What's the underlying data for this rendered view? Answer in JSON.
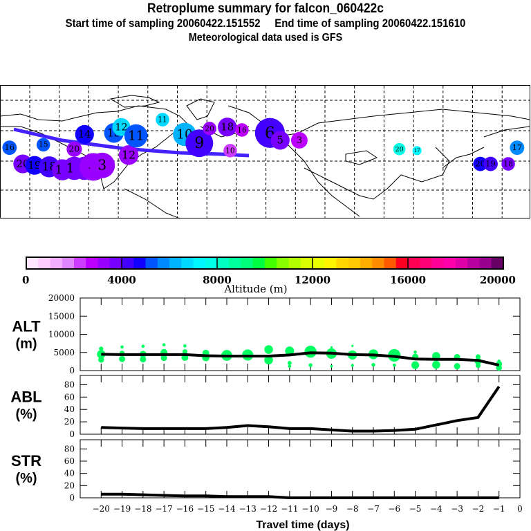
{
  "header": {
    "title": "Retroplume summary for falcon_060422c",
    "sampling": "Start time of sampling 20060422.151552     End time of sampling 20060422.151610",
    "met": "Meteorological data used is GFS"
  },
  "map": {
    "plume_points": [
      {
        "label": "20",
        "lon": -180,
        "lat": 37,
        "alt": 3800,
        "size": 3
      },
      {
        "label": "19",
        "lon": -172,
        "lat": 36,
        "alt": 4500,
        "size": 3
      },
      {
        "label": "18",
        "lon": -162,
        "lat": 35,
        "alt": 4200,
        "size": 3.5
      },
      {
        "label": "17",
        "lon": -153,
        "lat": 33,
        "alt": 3900,
        "size": 3.5
      },
      {
        "label": "16",
        "lon": -145,
        "lat": 34,
        "alt": 3800,
        "size": 4
      },
      {
        "label": "5",
        "lon": -138,
        "lat": 34,
        "alt": 3700,
        "size": 4
      },
      {
        "label": "4",
        "lon": -132,
        "lat": 35,
        "alt": 3400,
        "size": 5
      },
      {
        "label": "3",
        "lon": -126,
        "lat": 36,
        "alt": 3300,
        "size": 4.5
      },
      {
        "label": "16",
        "lon": -189,
        "lat": 48,
        "alt": 5000,
        "size": 2
      },
      {
        "label": "15",
        "lon": -166,
        "lat": 50,
        "alt": 5200,
        "size": 1.8
      },
      {
        "label": "20",
        "lon": -145,
        "lat": 47,
        "alt": 3000,
        "size": 2.2
      },
      {
        "label": "14",
        "lon": -138,
        "lat": 57,
        "alt": 4700,
        "size": 3
      },
      {
        "label": "13",
        "lon": -118,
        "lat": 58,
        "alt": 5200,
        "size": 3.2
      },
      {
        "label": "12",
        "lon": -113,
        "lat": 62,
        "alt": 6500,
        "size": 2.8
      },
      {
        "label": "12",
        "lon": -108,
        "lat": 43,
        "alt": 3000,
        "size": 3.2
      },
      {
        "label": "11",
        "lon": -103,
        "lat": 56,
        "alt": 5000,
        "size": 4
      },
      {
        "label": "11",
        "lon": -85,
        "lat": 67,
        "alt": 6500,
        "size": 1.8
      },
      {
        "label": "10",
        "lon": -70,
        "lat": 57,
        "alt": 6000,
        "size": 4
      },
      {
        "label": "9",
        "lon": -60,
        "lat": 51,
        "alt": 4400,
        "size": 5
      },
      {
        "label": "20",
        "lon": -53,
        "lat": 61,
        "alt": 3200,
        "size": 1.8
      },
      {
        "label": "18",
        "lon": -41,
        "lat": 62,
        "alt": 3600,
        "size": 3
      },
      {
        "label": "16",
        "lon": -31,
        "lat": 60,
        "alt": 2800,
        "size": 1.8
      },
      {
        "label": "6",
        "lon": -12,
        "lat": 58,
        "alt": 4000,
        "size": 5.5
      },
      {
        "label": "5",
        "lon": -5,
        "lat": 53,
        "alt": 3500,
        "size": 3
      },
      {
        "label": "3",
        "lon": 8,
        "lat": 53,
        "alt": 2800,
        "size": 2.5
      },
      {
        "label": "10",
        "lon": -39,
        "lat": 46,
        "alt": 2200,
        "size": 1.8
      },
      {
        "label": "20",
        "lon": 76,
        "lat": 47,
        "alt": 7600,
        "size": 1.5
      },
      {
        "label": "17",
        "lon": 88,
        "lat": 46,
        "alt": 7000,
        "size": 0.8
      },
      {
        "label": "20",
        "lon": 131,
        "lat": 37,
        "alt": 4500,
        "size": 2
      },
      {
        "label": "19",
        "lon": 138,
        "lat": 37,
        "alt": 4200,
        "size": 2
      },
      {
        "label": "18",
        "lon": 150,
        "lat": 37,
        "alt": 3700,
        "size": 1.8
      },
      {
        "label": "17",
        "lon": 156,
        "lat": 48,
        "alt": 5600,
        "size": 2
      }
    ]
  },
  "colorbar": {
    "label": "Altitude (m)",
    "ticks": [
      "0",
      "4000",
      "8000",
      "12000",
      "16000",
      "20000"
    ],
    "colors": [
      "#ffe6ff",
      "#ffccff",
      "#f4b0ff",
      "#e086ff",
      "#cc3dff",
      "#bb00ff",
      "#9900ff",
      "#7700ff",
      "#4400ff",
      "#1100ff",
      "#0055ff",
      "#008aff",
      "#00b3ff",
      "#00d8ff",
      "#00f6ff",
      "#00ffe6",
      "#00ffc2",
      "#00ff9c",
      "#00ff7b",
      "#00ff40",
      "#44ff00",
      "#88ff00",
      "#b3ff00",
      "#d9ff00",
      "#e8ff00",
      "#fff400",
      "#ffd600",
      "#ffc800",
      "#ffae00",
      "#ff8c00",
      "#ff5a00",
      "#ff0022",
      "#ff0055",
      "#ff0077",
      "#ff0099",
      "#ff00aa",
      "#e000aa",
      "#b800a0",
      "#990090",
      "#660066"
    ]
  },
  "chart_data": [
    {
      "type": "line",
      "title": "ALT (m)",
      "ylabel_top": "ALT",
      "ylabel_bottom": "(m)",
      "xlabel": "Travel time (days)",
      "x": [
        -20,
        -19,
        -18,
        -17,
        -16,
        -15,
        -14,
        -13,
        -12,
        -11,
        -10,
        -9,
        -8,
        -7,
        -6,
        -5,
        -4,
        -3,
        -2,
        -1
      ],
      "values": [
        4500,
        4400,
        4400,
        4400,
        4400,
        4100,
        4000,
        4000,
        4000,
        4300,
        4900,
        4800,
        4400,
        4300,
        3900,
        3200,
        3100,
        3100,
        2800,
        1500
      ],
      "scatter_color": "#00ff60",
      "scatter_clusters": [
        [
          [
            6000,
            1
          ],
          [
            4500,
            2.3
          ],
          [
            3000,
            1.5
          ]
        ],
        [
          [
            6500,
            0.6
          ],
          [
            4800,
            1.2
          ],
          [
            3200,
            1.6
          ]
        ],
        [
          [
            6700,
            0.6
          ],
          [
            4500,
            1.8
          ],
          [
            3100,
            1.6
          ]
        ],
        [
          [
            7100,
            0.6
          ],
          [
            5000,
            1.8
          ],
          [
            3500,
            1.6
          ]
        ],
        [
          [
            6800,
            0.6
          ],
          [
            5200,
            1.2
          ],
          [
            3600,
            1.8
          ]
        ],
        [
          [
            4800,
            1.8
          ],
          [
            3600,
            2
          ]
        ],
        [
          [
            4200,
            3.1
          ]
        ],
        [
          [
            4300,
            3.2
          ]
        ],
        [
          [
            5800,
            2.4
          ],
          [
            2900,
            2.4
          ]
        ],
        [
          [
            5400,
            2.5
          ],
          [
            2100,
            0.9
          ],
          [
            1200,
            0.6
          ]
        ],
        [
          [
            5200,
            3.5
          ],
          [
            1500,
            0.8
          ]
        ],
        [
          [
            6400,
            0.3
          ],
          [
            4700,
            3
          ],
          [
            1200,
            0.4
          ]
        ],
        [
          [
            6800,
            0.3
          ],
          [
            4300,
            2.6
          ],
          [
            1400,
            0.5
          ]
        ],
        [
          [
            4500,
            2.8
          ],
          [
            1600,
            0.8
          ]
        ],
        [
          [
            4200,
            3.7
          ],
          [
            1500,
            0.7
          ]
        ],
        [
          [
            5100,
            0.6
          ],
          [
            3800,
            1.6
          ],
          [
            1500,
            2.1
          ]
        ],
        [
          [
            4000,
            2.2
          ],
          [
            1600,
            2.2
          ]
        ],
        [
          [
            3700,
            1.6
          ],
          [
            1200,
            1.6
          ]
        ],
        [
          [
            3800,
            1.2
          ],
          [
            2600,
            1.8
          ],
          [
            1400,
            1.2
          ]
        ],
        [
          [
            2600,
            0.6
          ],
          [
            1800,
            1.6
          ],
          [
            800,
            1.5
          ]
        ]
      ],
      "yticks": [
        "0",
        "5000",
        "10000",
        "15000",
        "20000"
      ],
      "ylim": [
        0,
        20000
      ],
      "xlim": [
        -21,
        0
      ]
    },
    {
      "type": "line",
      "title": "ABL (%)",
      "ylabel_top": "ABL",
      "ylabel_bottom": "(%)",
      "x": [
        -20,
        -19,
        -18,
        -17,
        -16,
        -15,
        -14,
        -13,
        -12,
        -11,
        -10,
        -9,
        -8,
        -7,
        -6,
        -5,
        -4,
        -3,
        -2,
        -1
      ],
      "values": [
        11,
        10,
        9,
        9,
        9,
        9,
        11,
        14,
        12,
        9,
        9,
        7,
        5,
        5,
        6,
        8,
        15,
        22,
        27,
        77
      ],
      "yticks": [
        "0",
        "20",
        "40",
        "60",
        "80"
      ],
      "ylim": [
        0,
        95
      ],
      "xlim": [
        -21,
        0
      ]
    },
    {
      "type": "line",
      "title": "STR (%)",
      "ylabel_top": "STR",
      "ylabel_bottom": "(%)",
      "xlabel": "Travel time (days)",
      "x": [
        -20,
        -19,
        -18,
        -17,
        -16,
        -15,
        -14,
        -13,
        -12,
        -11,
        -10,
        -9,
        -8,
        -7,
        -6,
        -5,
        -4,
        -3,
        -2,
        -1
      ],
      "values": [
        6,
        6,
        5,
        4,
        3,
        3,
        2,
        2,
        2,
        0,
        0,
        0,
        0,
        0,
        0,
        0,
        0,
        0,
        0,
        0
      ],
      "yticks": [
        "0",
        "20",
        "40",
        "60",
        "80"
      ],
      "xticks": [
        "-20",
        "-19",
        "-18",
        "-17",
        "-16",
        "-15",
        "-14",
        "-13",
        "-12",
        "-11",
        "-10",
        "-9",
        "-8",
        "-7",
        "-6",
        "-5",
        "-4",
        "-3",
        "-2",
        "-1",
        "0"
      ],
      "ylim": [
        0,
        95
      ],
      "xlim": [
        -21,
        0
      ]
    }
  ]
}
